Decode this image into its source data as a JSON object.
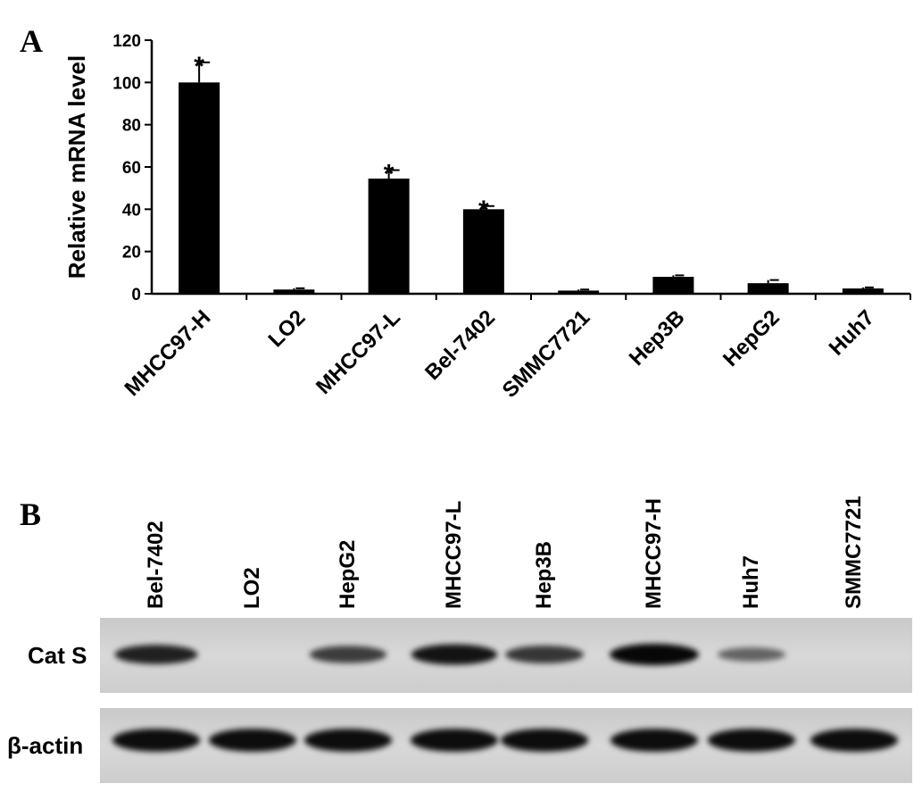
{
  "chart_data": [
    {
      "panel": "A",
      "type": "bar",
      "ylabel": "Relative mRNA level",
      "xlabel": "",
      "ylim": [
        0,
        120
      ],
      "yticks": [
        0,
        20,
        40,
        60,
        80,
        100,
        120
      ],
      "categories": [
        "MHCC97-H",
        "LO2",
        "MHCC97-L",
        "Bel-7402",
        "SMMC7721",
        "Hep3B",
        "HepG2",
        "Huh7"
      ],
      "values": [
        100,
        2,
        54.5,
        40,
        1.5,
        8,
        5,
        2.5
      ],
      "errors": [
        9.5,
        0.6,
        4,
        1.5,
        0.5,
        0.7,
        1.5,
        0.5
      ],
      "significance": [
        "*",
        "",
        "*",
        "*",
        "",
        "",
        "",
        ""
      ],
      "bar_color": "#000000",
      "grid": false
    },
    {
      "panel": "B",
      "type": "western-blot",
      "lanes": [
        "Bel-7402",
        "LO2",
        "HepG2",
        "MHCC97-L",
        "Hep3B",
        "MHCC97-H",
        "Huh7",
        "SMMC7721"
      ],
      "rows": [
        {
          "name": "Cat S",
          "intensity": [
            0.8,
            0.0,
            0.6,
            0.9,
            0.65,
            1.0,
            0.3,
            0.0
          ]
        },
        {
          "name": "β-actin",
          "intensity": [
            0.95,
            0.95,
            0.95,
            0.95,
            0.95,
            0.95,
            0.95,
            0.95
          ]
        }
      ]
    }
  ]
}
